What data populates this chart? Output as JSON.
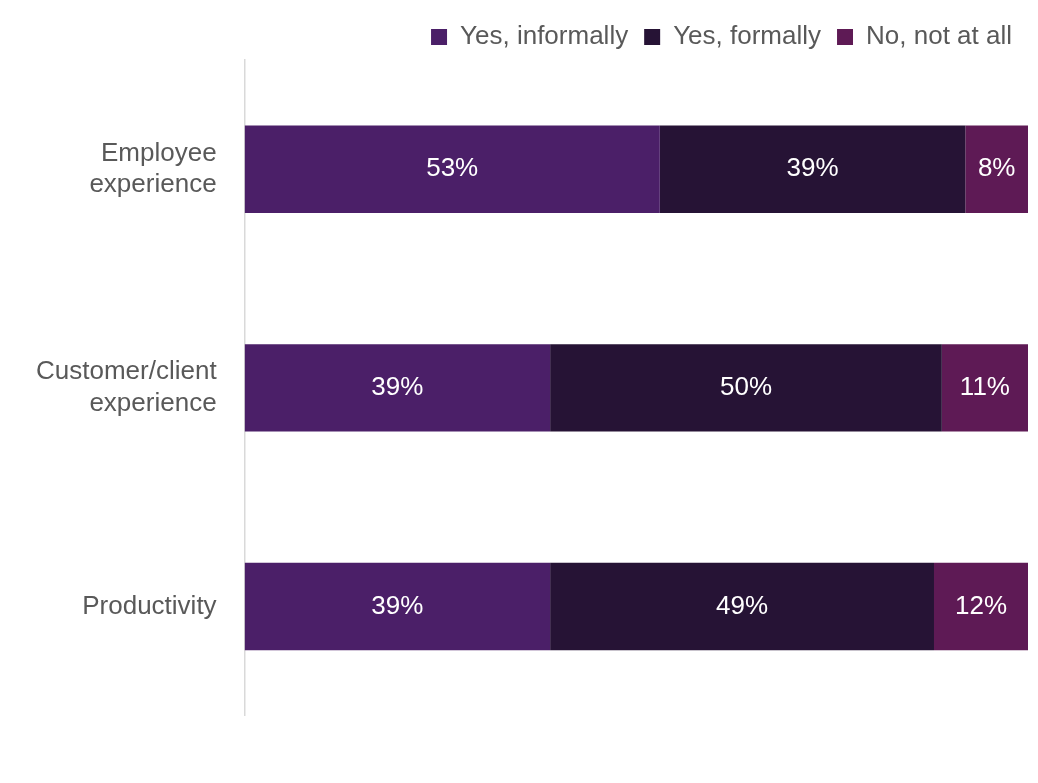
{
  "chart_data": {
    "type": "bar",
    "orientation": "horizontal",
    "stacked": true,
    "tick_labels": "y",
    "categories": [
      "Employee experience",
      "Customer/client experience",
      "Productivity"
    ],
    "series": [
      {
        "name": "Yes, informally",
        "color": "#4b1f68",
        "values": [
          53,
          39,
          39
        ],
        "value_labels": [
          "53%",
          "39%",
          "39%"
        ]
      },
      {
        "name": "Yes, formally",
        "color": "#261335",
        "values": [
          39,
          50,
          49
        ],
        "value_labels": [
          "39%",
          "50%",
          "49%"
        ]
      },
      {
        "name": "No, not at all",
        "color": "#5e1a55",
        "values": [
          8,
          11,
          12
        ],
        "value_labels": [
          "8%",
          "11%",
          "12%"
        ]
      }
    ],
    "legend": "top right"
  }
}
